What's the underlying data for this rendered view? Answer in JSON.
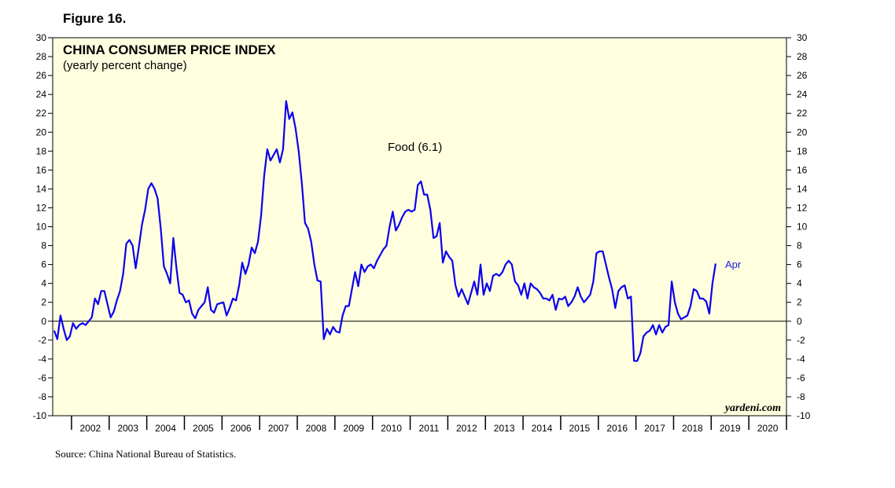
{
  "figure_label": "Figure 16.",
  "source": "Source: China National Bureau of Statistics.",
  "colors": {
    "plot_bg": "#ffffe0",
    "line": "#0a00ee",
    "axis": "#000000",
    "label": "#1a1ae6"
  },
  "chart_data": {
    "type": "line",
    "title": "CHINA CONSUMER PRICE INDEX",
    "subtitle": "(yearly percent change)",
    "series_label": "Food (6.1)",
    "end_label": "Apr",
    "watermark": "yardeni.com",
    "xlabel": "",
    "ylabel": "",
    "ylim": [
      -10,
      30
    ],
    "xlim": [
      2001.5,
      2021.0
    ],
    "y_ticks": [
      "30",
      "28",
      "26",
      "24",
      "22",
      "20",
      "18",
      "16",
      "14",
      "12",
      "10",
      "8",
      "6",
      "4",
      "2",
      "0",
      "-2",
      "-4",
      "-6",
      "-8",
      "-10"
    ],
    "x_labels": [
      "2002",
      "2003",
      "2004",
      "2005",
      "2006",
      "2007",
      "2008",
      "2009",
      "2010",
      "2011",
      "2012",
      "2013",
      "2014",
      "2015",
      "2016",
      "2017",
      "2018",
      "2019",
      "2020"
    ],
    "series": [
      {
        "name": "Food",
        "start": 2001.54,
        "step": 0.0833,
        "values": [
          -1.0,
          -1.9,
          0.6,
          -0.8,
          -2.0,
          -1.6,
          -0.2,
          -0.8,
          -0.4,
          -0.2,
          -0.4,
          0.0,
          0.4,
          2.4,
          1.8,
          3.2,
          3.2,
          1.8,
          0.4,
          1.0,
          2.2,
          3.2,
          5.0,
          8.2,
          8.6,
          8.0,
          5.6,
          7.8,
          10.2,
          11.8,
          14.0,
          14.6,
          14.0,
          13.0,
          9.8,
          5.8,
          5.0,
          4.0,
          8.8,
          5.6,
          3.0,
          2.8,
          2.0,
          2.2,
          0.8,
          0.3,
          1.2,
          1.6,
          2.0,
          3.6,
          1.2,
          0.9,
          1.8,
          1.9,
          2.0,
          0.6,
          1.4,
          2.4,
          2.2,
          3.8,
          6.2,
          5.0,
          6.0,
          7.8,
          7.2,
          8.4,
          11.2,
          15.4,
          18.2,
          17.0,
          17.6,
          18.2,
          16.8,
          18.2,
          23.3,
          21.4,
          22.1,
          20.4,
          18.0,
          14.6,
          10.4,
          9.8,
          8.4,
          6.0,
          4.3,
          4.2,
          -1.9,
          -0.8,
          -1.4,
          -0.6,
          -1.1,
          -1.2,
          0.6,
          1.6,
          1.6,
          3.4,
          5.2,
          3.7,
          6.0,
          5.2,
          5.8,
          6.0,
          5.6,
          6.4,
          7.0,
          7.6,
          8.0,
          10.0,
          11.6,
          9.6,
          10.2,
          11.0,
          11.6,
          11.8,
          11.6,
          11.8,
          14.4,
          14.8,
          13.4,
          13.4,
          11.8,
          8.8,
          9.0,
          10.4,
          6.2,
          7.4,
          6.8,
          6.4,
          3.8,
          2.6,
          3.4,
          2.6,
          1.8,
          3.0,
          4.2,
          2.8,
          6.0,
          2.8,
          4.0,
          3.2,
          4.8,
          5.0,
          4.8,
          5.2,
          6.0,
          6.4,
          6.0,
          4.2,
          3.8,
          2.8,
          4.0,
          2.4,
          4.0,
          3.6,
          3.4,
          3.0,
          2.4,
          2.4,
          2.2,
          2.8,
          1.2,
          2.4,
          2.3,
          2.6,
          1.6,
          2.0,
          2.6,
          3.6,
          2.6,
          2.0,
          2.4,
          2.8,
          4.2,
          7.2,
          7.4,
          7.4,
          6.0,
          4.6,
          3.4,
          1.4,
          3.2,
          3.6,
          3.8,
          2.4,
          2.6,
          -4.2,
          -4.2,
          -3.4,
          -1.6,
          -1.2,
          -1.0,
          -0.4,
          -1.4,
          -0.4,
          -1.2,
          -0.6,
          -0.4,
          4.2,
          2.0,
          0.8,
          0.2,
          0.4,
          0.6,
          1.6,
          3.4,
          3.2,
          2.4,
          2.4,
          2.1,
          0.8,
          4.0,
          6.1
        ]
      }
    ]
  }
}
